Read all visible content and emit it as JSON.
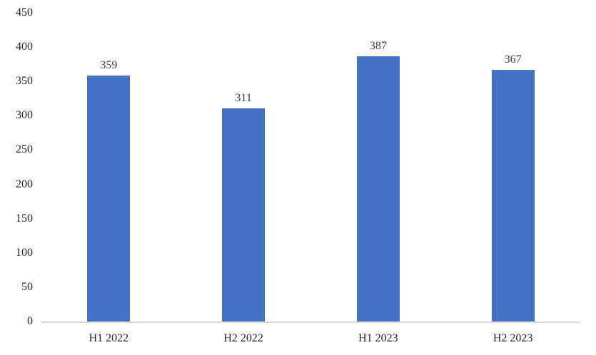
{
  "chart_data": {
    "type": "bar",
    "categories": [
      "H1 2022",
      "H2 2022",
      "H1 2023",
      "H2 2023"
    ],
    "values": [
      359,
      311,
      387,
      367
    ],
    "data_labels": [
      "359",
      "311",
      "387",
      "367"
    ],
    "title": "",
    "xlabel": "",
    "ylabel": "",
    "ylim": [
      0,
      450
    ],
    "yticks": [
      "0",
      "50",
      "100",
      "150",
      "200",
      "250",
      "300",
      "350",
      "400",
      "450"
    ],
    "grid": false,
    "legend": "none",
    "colors": {
      "bar_fill": "#4472C4",
      "axis_line": "#D9D9D9",
      "tick_label_text": "#262626",
      "data_label_text": "#404040",
      "background": "#FFFFFF"
    }
  }
}
